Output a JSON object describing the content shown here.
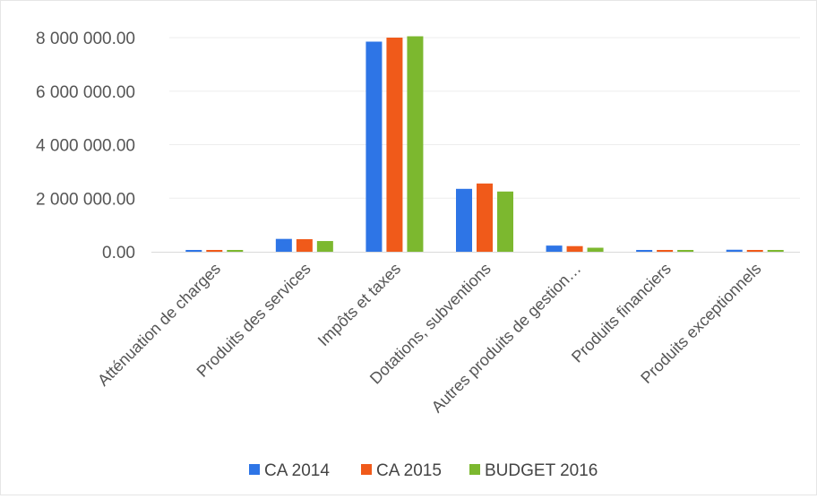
{
  "chart_data": {
    "type": "bar",
    "title": "",
    "xlabel": "",
    "ylabel": "",
    "ylim": [
      0,
      8000000
    ],
    "yticks": [
      0,
      2000000,
      4000000,
      6000000,
      8000000
    ],
    "ytick_labels": [
      "0.00",
      "2 000 000.00",
      "4 000 000.00",
      "6 000 000.00",
      "8 000 000.00"
    ],
    "grid": true,
    "legend_position": "bottom",
    "categories": [
      "Atténuation de charges",
      "Produits des services",
      "Impôts et taxes",
      "Dotations, subventions",
      "Autres produits de gestion…",
      "Produits financiers",
      "Produits exceptionnels"
    ],
    "series": [
      {
        "name": "CA 2014",
        "color": "#2e75e6",
        "values": [
          45000,
          480000,
          7850000,
          2350000,
          230000,
          55000,
          75000
        ]
      },
      {
        "name": "CA 2015",
        "color": "#f05a1a",
        "values": [
          40000,
          470000,
          8000000,
          2550000,
          210000,
          45000,
          60000
        ]
      },
      {
        "name": "BUDGET 2016",
        "color": "#7cb82f",
        "values": [
          35000,
          400000,
          8050000,
          2250000,
          150000,
          40000,
          50000
        ]
      }
    ]
  }
}
